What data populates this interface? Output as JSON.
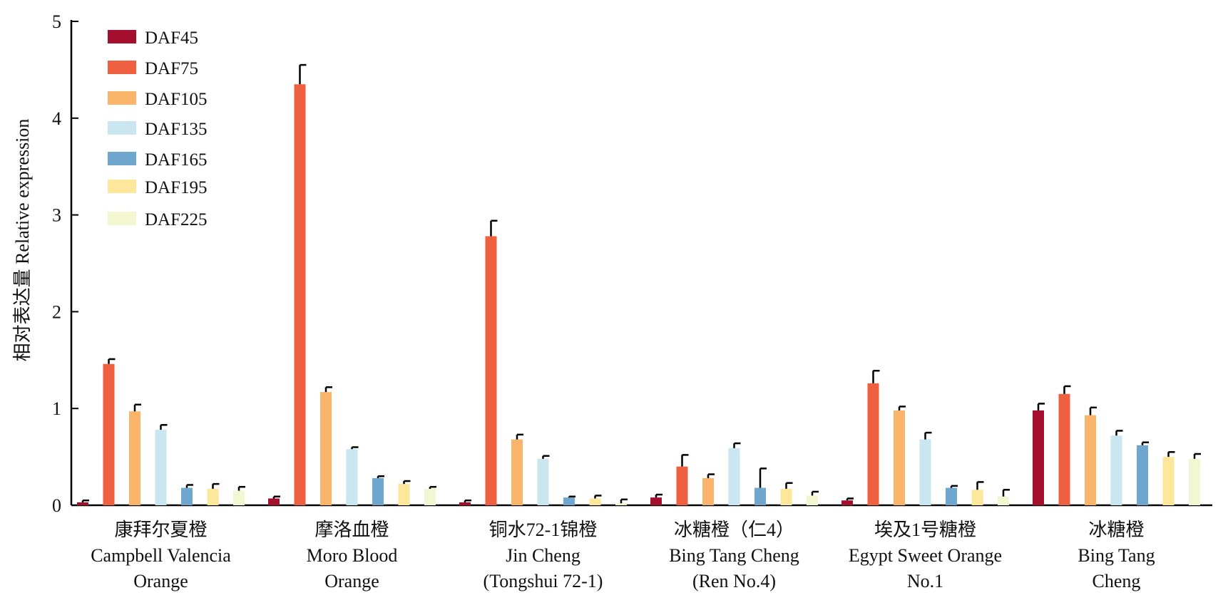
{
  "chart_data": {
    "type": "bar",
    "title": "",
    "xlabel": "",
    "ylabel": "相对表达量 Relative expression",
    "ylim": [
      0,
      5
    ],
    "yticks": [
      "0",
      "1",
      "2",
      "3",
      "4",
      "5"
    ],
    "grid": false,
    "legend_position": "top-left",
    "categories": [
      [
        "康拜尔夏橙",
        "Campbell Valencia",
        "Orange"
      ],
      [
        "摩洛血橙",
        "Moro Blood",
        "Orange"
      ],
      [
        "铜水72-1锦橙",
        "Jin Cheng",
        "(Tongshui 72-1)"
      ],
      [
        "冰糖橙（仁4）",
        "Bing Tang Cheng",
        "(Ren No.4)"
      ],
      [
        "埃及1号糖橙",
        "Egypt Sweet Orange",
        "No.1"
      ],
      [
        "冰糖橙",
        "Bing Tang",
        "Cheng"
      ]
    ],
    "series": [
      {
        "name": "DAF45",
        "color": "#a50f2e",
        "values": [
          0.03,
          0.07,
          0.03,
          0.08,
          0.05,
          0.98
        ],
        "errors": [
          0.02,
          0.02,
          0.02,
          0.03,
          0.02,
          0.07
        ]
      },
      {
        "name": "DAF75",
        "color": "#ee6040",
        "values": [
          1.46,
          4.35,
          2.78,
          0.4,
          1.26,
          1.15
        ],
        "errors": [
          0.05,
          0.2,
          0.16,
          0.12,
          0.13,
          0.08
        ]
      },
      {
        "name": "DAF105",
        "color": "#fbb56a",
        "values": [
          0.97,
          1.17,
          0.68,
          0.28,
          0.98,
          0.93
        ],
        "errors": [
          0.07,
          0.05,
          0.05,
          0.04,
          0.04,
          0.08
        ]
      },
      {
        "name": "DAF135",
        "color": "#c9e6f1",
        "values": [
          0.78,
          0.58,
          0.48,
          0.59,
          0.68,
          0.72
        ],
        "errors": [
          0.05,
          0.02,
          0.03,
          0.05,
          0.07,
          0.05
        ]
      },
      {
        "name": "DAF165",
        "color": "#6fa7ce",
        "values": [
          0.18,
          0.28,
          0.08,
          0.18,
          0.18,
          0.62
        ],
        "errors": [
          0.03,
          0.02,
          0.01,
          0.2,
          0.02,
          0.03
        ]
      },
      {
        "name": "DAF195",
        "color": "#fde79a",
        "values": [
          0.17,
          0.22,
          0.07,
          0.17,
          0.16,
          0.5
        ],
        "errors": [
          0.05,
          0.03,
          0.03,
          0.06,
          0.08,
          0.05
        ]
      },
      {
        "name": "DAF225",
        "color": "#f2f7d2",
        "values": [
          0.15,
          0.17,
          0.02,
          0.1,
          0.09,
          0.48
        ],
        "errors": [
          0.04,
          0.02,
          0.04,
          0.04,
          0.07,
          0.05
        ]
      }
    ]
  }
}
